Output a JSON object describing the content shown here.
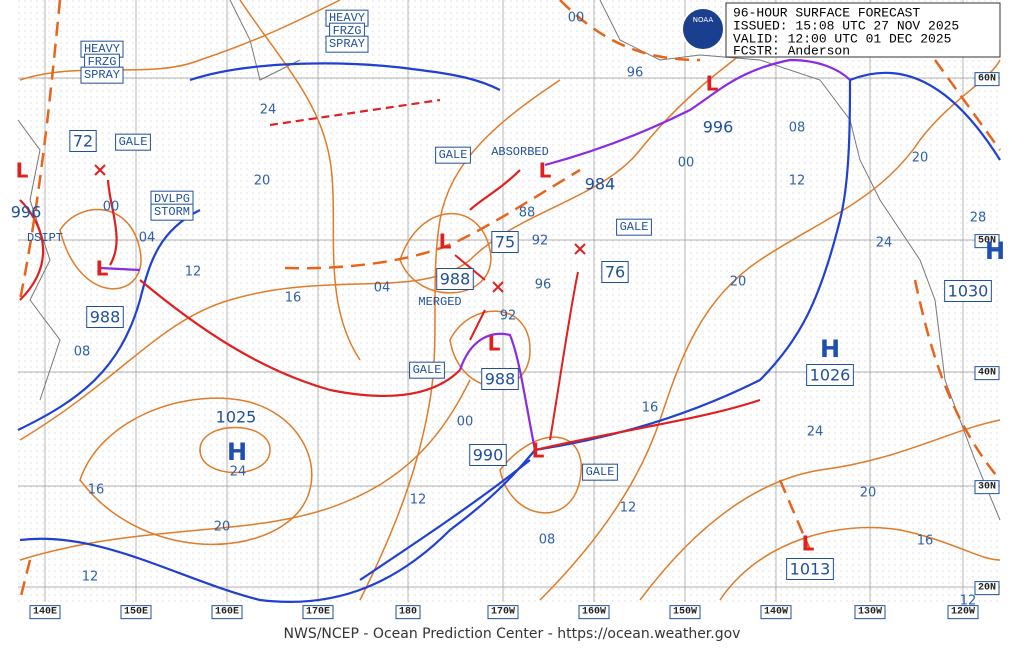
{
  "header": {
    "lines": [
      "96-HOUR SURFACE FORECAST",
      "ISSUED: 15:08 UTC 27 NOV 2025",
      "VALID:  12:00 UTC 01 DEC 2025",
      "FCSTR:  Anderson"
    ]
  },
  "logo": "NOAA",
  "footer": "NWS/NCEP - Ocean Prediction Center - https://ocean.weather.gov",
  "longitudes": [
    "140E",
    "150E",
    "160E",
    "170E",
    "180",
    "170W",
    "160W",
    "150W",
    "140W",
    "130W",
    "120W"
  ],
  "latitudes": [
    "60N",
    "50N",
    "40N",
    "30N",
    "20N"
  ],
  "highs": [
    {
      "symbol": "H",
      "pressure": "1025"
    },
    {
      "symbol": "H",
      "pressure": "1026"
    },
    {
      "symbol": "H",
      "pressure": "1030"
    }
  ],
  "lows": [
    {
      "symbol": "L",
      "pressure": "988"
    },
    {
      "symbol": "L",
      "pressure": "988"
    },
    {
      "symbol": "L",
      "pressure": "988"
    },
    {
      "symbol": "L",
      "pressure": "990"
    },
    {
      "symbol": "L",
      "pressure": "984"
    },
    {
      "symbol": "L",
      "pressure": "996"
    },
    {
      "symbol": "L",
      "pressure": "1013"
    },
    {
      "symbol": "L",
      "pressure": "996"
    }
  ],
  "wind_speeds": [
    "72",
    "75",
    "76"
  ],
  "warnings": [
    "GALE",
    "GALE",
    "GALE",
    "GALE",
    "GALE",
    "HEAVY",
    "FRZG",
    "SPRAY",
    "HEAVY",
    "FRZG",
    "SPRAY",
    "DVLPG",
    "STORM"
  ],
  "notes": [
    "ABSORBED",
    "MERGED",
    "DSIPT"
  ],
  "isobar_labels": [
    "00",
    "96",
    "08",
    "00",
    "12",
    "20",
    "28",
    "24",
    "20",
    "16",
    "24",
    "20",
    "16",
    "12",
    "08",
    "12",
    "00",
    "96",
    "92",
    "92",
    "88",
    "04",
    "16",
    "20",
    "24",
    "00",
    "04",
    "12",
    "08",
    "16",
    "20",
    "12",
    "24",
    "12"
  ]
}
